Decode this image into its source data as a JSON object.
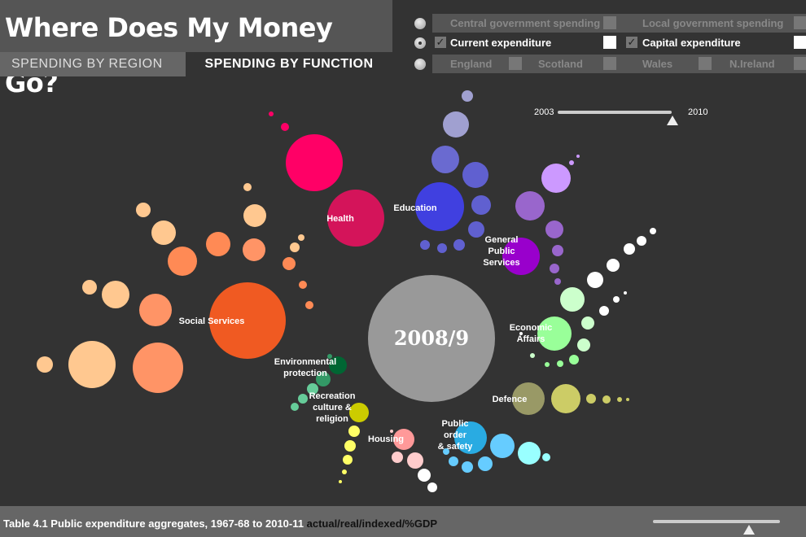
{
  "header": {
    "title": "Where Does My Money Go?",
    "tabs": [
      {
        "label": "SPENDING BY REGION",
        "active": false
      },
      {
        "label": "SPENDING BY FUNCTION",
        "active": true
      }
    ]
  },
  "filters": {
    "row1": {
      "selected": false,
      "left": "Central government spending",
      "right": "Local government spending"
    },
    "row2": {
      "selected": true,
      "left": "Current expenditure",
      "left_checked": true,
      "right": "Capital expenditure",
      "right_checked": true
    },
    "row3": {
      "selected": false,
      "items": [
        "England",
        "Scotland",
        "Wales",
        "N.Ireland"
      ]
    }
  },
  "year_slider": {
    "min": "2003",
    "max": "2010",
    "value_fraction": 0.95
  },
  "chart_data": {
    "type": "bubble",
    "center_label": "2008/9",
    "groups": [
      {
        "name": "Social Services",
        "color": "#f05a22"
      },
      {
        "name": "Health",
        "color": "#d4145a"
      },
      {
        "name": "Education",
        "color": "#4040e0"
      },
      {
        "name": "General Public Services",
        "label_lines": [
          "General",
          "Public",
          "Services"
        ],
        "color": "#9900cc"
      },
      {
        "name": "Economic Affairs",
        "label_lines": [
          "Economic",
          "Affairs"
        ],
        "color": "#99ff99"
      },
      {
        "name": "Defence",
        "color": "#999966"
      },
      {
        "name": "Public order & safety",
        "label_lines": [
          "Public",
          "order",
          "& safety"
        ],
        "color": "#29abe2"
      },
      {
        "name": "Housing",
        "color": "#ff9999"
      },
      {
        "name": "Recreation culture & religion",
        "label_lines": [
          "Recreation",
          "culture &",
          "religion"
        ],
        "color": "#cccc00"
      },
      {
        "name": "Environmental protection",
        "label_lines": [
          "Environmental",
          "protection"
        ],
        "color": "#006633"
      }
    ]
  },
  "footer": {
    "text": "Table 4.1 Public expenditure aggregates, 1967-68 to 2010-11",
    "modes": "actual/real/indexed/%GDP",
    "slider_fraction": 0.75
  }
}
